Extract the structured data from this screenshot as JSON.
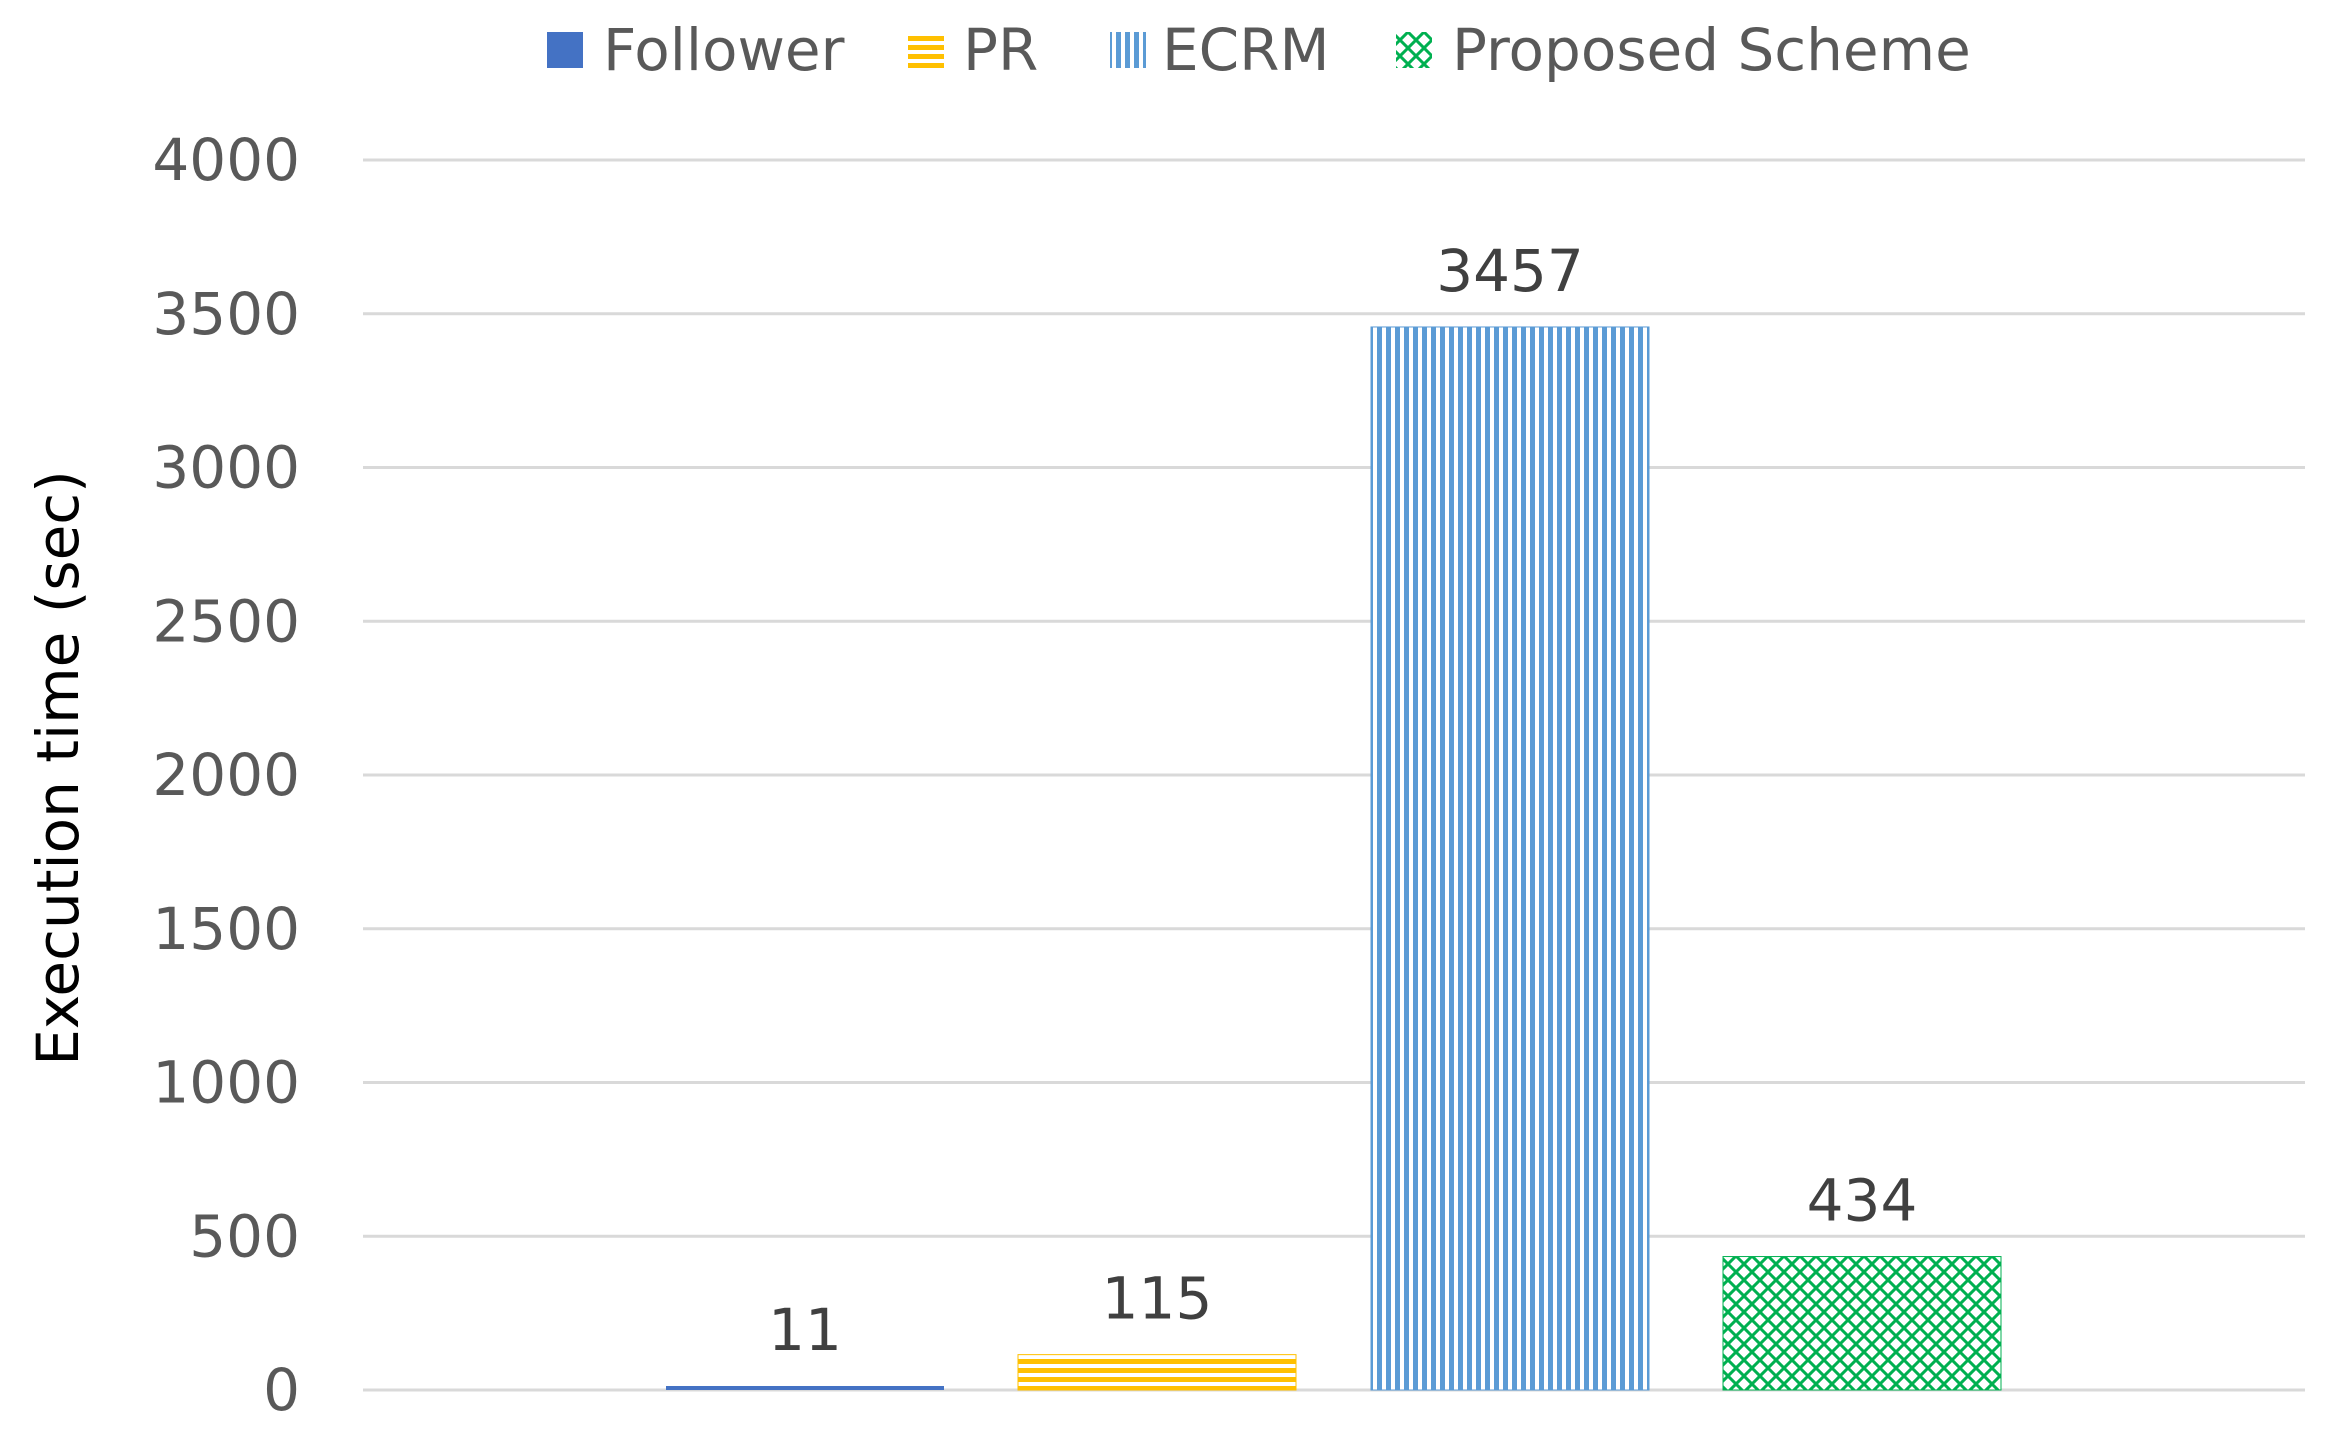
{
  "chart_data": {
    "type": "bar",
    "title": "",
    "xlabel": "",
    "ylabel": "Execution time (sec)",
    "ylim": [
      0,
      4000
    ],
    "yticks": [
      0,
      500,
      1000,
      1500,
      2000,
      2500,
      3000,
      3500,
      4000
    ],
    "grid": true,
    "legend_position": "top",
    "series": [
      {
        "name": "Follower",
        "value": 11,
        "color": "#4472C4",
        "pattern": "solid"
      },
      {
        "name": "PR",
        "value": 115,
        "color": "#FFC000",
        "pattern": "horizontal-lines"
      },
      {
        "name": "ECRM",
        "value": 3457,
        "color": "#5B9BD5",
        "pattern": "vertical-lines"
      },
      {
        "name": "Proposed Scheme",
        "value": 434,
        "color": "#00B050",
        "pattern": "diamond-cross"
      }
    ],
    "data_labels": [
      "11",
      "115",
      "3457",
      "434"
    ]
  }
}
